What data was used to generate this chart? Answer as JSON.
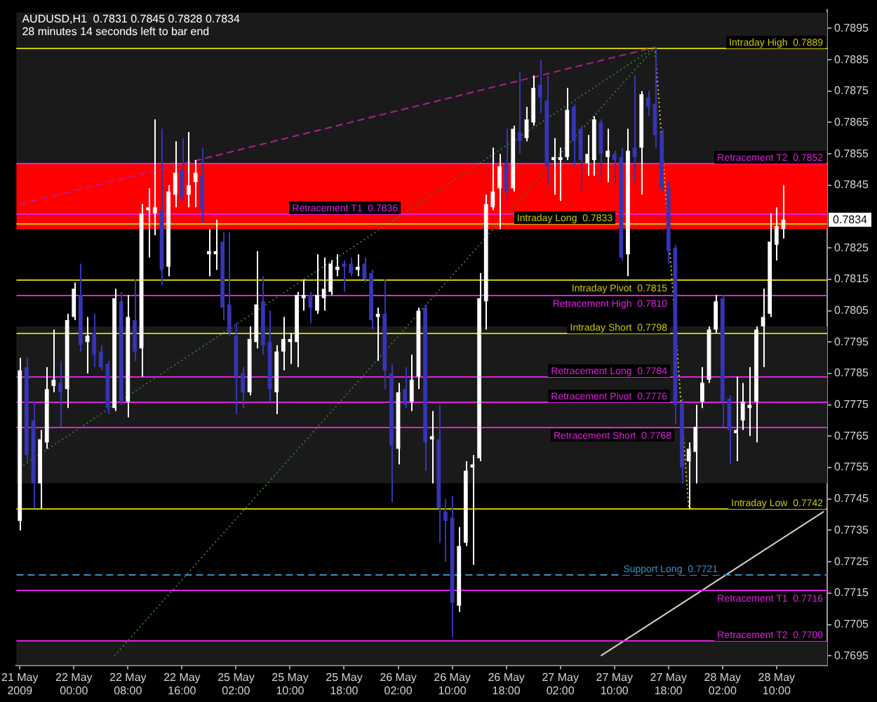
{
  "chart_data": {
    "type": "candlestick",
    "title": "AUDUSD,H1  0.7831 0.7845 0.7828 0.7834",
    "subtitle": "28 minutes 14 seconds left to bar end",
    "categories": [
      "21 May 2009",
      null,
      null,
      null,
      null,
      null,
      null,
      null,
      "22 May 00:00",
      null,
      null,
      null,
      null,
      null,
      null,
      null,
      "22 May 08:00",
      null,
      null,
      null,
      null,
      null,
      null,
      null,
      "22 May 16:00",
      null,
      null,
      null,
      null,
      null,
      null,
      null,
      "25 May 02:00",
      null,
      null,
      null,
      null,
      null,
      null,
      null,
      "25 May 10:00",
      null,
      null,
      null,
      null,
      null,
      null,
      null,
      "25 May 18:00",
      null,
      null,
      null,
      null,
      null,
      null,
      null,
      "26 May 02:00",
      null,
      null,
      null,
      null,
      null,
      null,
      null,
      "26 May 10:00",
      null,
      null,
      null,
      null,
      null,
      null,
      null,
      "26 May 18:00",
      null,
      null,
      null,
      null,
      null,
      null,
      null,
      "27 May 02:00",
      null,
      null,
      null,
      null,
      null,
      null,
      null,
      "27 May 10:00",
      null,
      null,
      null,
      null,
      null,
      null,
      null,
      "27 May 18:00",
      null,
      null,
      null,
      null,
      null,
      null,
      null,
      "28 May 02:00",
      null,
      null,
      null,
      null,
      null,
      null,
      null,
      "28 May 10:00",
      null,
      null,
      null,
      null,
      null,
      null,
      null
    ],
    "ohlc": [
      [
        0.7738,
        0.779,
        0.7735,
        0.7786
      ],
      [
        0.7787,
        0.779,
        0.7757,
        0.7759
      ],
      [
        0.777,
        0.7776,
        0.7742,
        0.775
      ],
      [
        0.775,
        0.7767,
        0.7742,
        0.7764
      ],
      [
        0.7763,
        0.7787,
        0.7761,
        0.778
      ],
      [
        0.7781,
        0.7799,
        0.7779,
        0.7783
      ],
      [
        0.7782,
        0.7789,
        0.7768,
        0.7779
      ],
      [
        0.778,
        0.7804,
        0.7774,
        0.7802
      ],
      [
        0.7803,
        0.7814,
        0.7802,
        0.7812
      ],
      [
        0.781,
        0.782,
        0.7792,
        0.7794
      ],
      [
        0.7795,
        0.7803,
        0.7785,
        0.7797
      ],
      [
        0.7798,
        0.7804,
        0.7787,
        0.7791
      ],
      [
        0.7792,
        0.7794,
        0.7786,
        0.7787
      ],
      [
        0.7788,
        0.7789,
        0.7772,
        0.7774
      ],
      [
        0.7774,
        0.7812,
        0.7773,
        0.7809
      ],
      [
        0.7808,
        0.7811,
        0.7775,
        0.7776
      ],
      [
        0.7776,
        0.781,
        0.7771,
        0.7803
      ],
      [
        0.7802,
        0.7815,
        0.7789,
        0.7792
      ],
      [
        0.7793,
        0.7839,
        0.7784,
        0.7836
      ],
      [
        0.7837,
        0.7844,
        0.7822,
        0.7838
      ],
      [
        0.7836,
        0.7866,
        0.7829,
        0.7838
      ],
      [
        0.7837,
        0.7863,
        0.7813,
        0.7818
      ],
      [
        0.7819,
        0.7845,
        0.7816,
        0.7843
      ],
      [
        0.7842,
        0.7859,
        0.7838,
        0.7849
      ],
      [
        0.785,
        0.786,
        0.784,
        0.7841
      ],
      [
        0.7842,
        0.7862,
        0.7838,
        0.7845
      ],
      [
        0.7846,
        0.7853,
        0.7838,
        0.7849
      ],
      [
        0.7848,
        0.7857,
        0.7833,
        0.7837
      ],
      [
        0.7823,
        0.7831,
        0.7816,
        0.7824
      ],
      [
        0.7823,
        0.7834,
        0.7818,
        0.7824
      ],
      [
        0.7827,
        0.783,
        0.7802,
        0.7806
      ],
      [
        0.7807,
        0.783,
        0.7797,
        0.7798
      ],
      [
        0.7797,
        0.7801,
        0.7772,
        0.7784
      ],
      [
        0.7785,
        0.7787,
        0.7774,
        0.7779
      ],
      [
        0.7779,
        0.78,
        0.7778,
        0.7796
      ],
      [
        0.7795,
        0.7824,
        0.7793,
        0.7807
      ],
      [
        0.7808,
        0.7816,
        0.7791,
        0.7794
      ],
      [
        0.7795,
        0.7805,
        0.7776,
        0.778
      ],
      [
        0.7779,
        0.7794,
        0.7772,
        0.7792
      ],
      [
        0.7792,
        0.7803,
        0.7786,
        0.7796
      ],
      [
        0.7795,
        0.7798,
        0.7788,
        0.7796
      ],
      [
        0.7795,
        0.7811,
        0.7787,
        0.781
      ],
      [
        0.7809,
        0.7815,
        0.7805,
        0.781
      ],
      [
        0.781,
        0.7811,
        0.7801,
        0.7806
      ],
      [
        0.7805,
        0.7823,
        0.7804,
        0.781
      ],
      [
        0.7809,
        0.7822,
        0.7805,
        0.7812
      ],
      [
        0.7811,
        0.7821,
        0.781,
        0.782
      ],
      [
        0.7818,
        0.7823,
        0.7816,
        0.7819
      ],
      [
        0.782,
        0.7821,
        0.7811,
        0.7819
      ],
      [
        0.782,
        0.7822,
        0.7816,
        0.7817
      ],
      [
        0.7818,
        0.7823,
        0.7816,
        0.7819
      ],
      [
        0.782,
        0.7822,
        0.7814,
        0.7815
      ],
      [
        0.7817,
        0.7818,
        0.7799,
        0.7802
      ],
      [
        0.7803,
        0.7806,
        0.7789,
        0.7804
      ],
      [
        0.7804,
        0.7815,
        0.778,
        0.7786
      ],
      [
        0.7785,
        0.7788,
        0.7744,
        0.7762
      ],
      [
        0.7761,
        0.7782,
        0.7756,
        0.7779
      ],
      [
        0.778,
        0.7787,
        0.7774,
        0.7775
      ],
      [
        0.7776,
        0.7791,
        0.7773,
        0.7783
      ],
      [
        0.7784,
        0.7806,
        0.778,
        0.7805
      ],
      [
        0.7806,
        0.7807,
        0.7754,
        0.7763
      ],
      [
        0.7764,
        0.7773,
        0.775,
        0.7765
      ],
      [
        0.7764,
        0.7775,
        0.7731,
        0.7742
      ],
      [
        0.7741,
        0.7745,
        0.7725,
        0.7738
      ],
      [
        0.7739,
        0.7746,
        0.7701,
        0.7712
      ],
      [
        0.7711,
        0.7736,
        0.7709,
        0.773
      ],
      [
        0.7731,
        0.7757,
        0.773,
        0.7754
      ],
      [
        0.7755,
        0.7759,
        0.7724,
        0.7756
      ],
      [
        0.7758,
        0.7817,
        0.7757,
        0.7809
      ],
      [
        0.7808,
        0.7842,
        0.7799,
        0.7839
      ],
      [
        0.7838,
        0.7857,
        0.7837,
        0.7843
      ],
      [
        0.7844,
        0.7855,
        0.7831,
        0.7851
      ],
      [
        0.7852,
        0.7863,
        0.784,
        0.7843
      ],
      [
        0.7844,
        0.7864,
        0.7843,
        0.7863
      ],
      [
        0.7862,
        0.7881,
        0.7855,
        0.7859
      ],
      [
        0.786,
        0.787,
        0.7859,
        0.7866
      ],
      [
        0.7865,
        0.788,
        0.7864,
        0.7876
      ],
      [
        0.7877,
        0.7885,
        0.7868,
        0.7873
      ],
      [
        0.7872,
        0.788,
        0.7845,
        0.7851
      ],
      [
        0.7853,
        0.786,
        0.7842,
        0.7854
      ],
      [
        0.7853,
        0.7857,
        0.784,
        0.7854
      ],
      [
        0.7854,
        0.7876,
        0.7853,
        0.7869
      ],
      [
        0.787,
        0.7871,
        0.7851,
        0.7859
      ],
      [
        0.7863,
        0.7864,
        0.7843,
        0.7853
      ],
      [
        0.7852,
        0.7861,
        0.7848,
        0.7855
      ],
      [
        0.7853,
        0.7867,
        0.7848,
        0.7866
      ],
      [
        0.7865,
        0.7866,
        0.7846,
        0.7855
      ],
      [
        0.7854,
        0.7863,
        0.7846,
        0.7856
      ],
      [
        0.7855,
        0.7856,
        0.7846,
        0.7853
      ],
      [
        0.7854,
        0.7857,
        0.7821,
        0.7822
      ],
      [
        0.7823,
        0.7863,
        0.7816,
        0.7856
      ],
      [
        0.7857,
        0.788,
        0.7846,
        0.7854
      ],
      [
        0.7857,
        0.7875,
        0.7842,
        0.7874
      ],
      [
        0.7873,
        0.7875,
        0.7867,
        0.787
      ],
      [
        0.7871,
        0.7889,
        0.7857,
        0.7861
      ],
      [
        0.7862,
        0.7863,
        0.7843,
        0.7844
      ],
      [
        0.7844,
        0.7846,
        0.782,
        0.7824
      ],
      [
        0.7825,
        0.7826,
        0.7769,
        0.7775
      ],
      [
        0.7775,
        0.7777,
        0.775,
        0.7755
      ],
      [
        0.7757,
        0.7763,
        0.7742,
        0.7761
      ],
      [
        0.776,
        0.7775,
        0.775,
        0.7768
      ],
      [
        0.7776,
        0.7787,
        0.7774,
        0.7782
      ],
      [
        0.7783,
        0.78,
        0.7782,
        0.7799
      ],
      [
        0.7799,
        0.781,
        0.7798,
        0.7808
      ],
      [
        0.7809,
        0.781,
        0.7768,
        0.7776
      ],
      [
        0.7777,
        0.7778,
        0.7756,
        0.7767
      ],
      [
        0.7766,
        0.7784,
        0.7757,
        0.7767
      ],
      [
        0.777,
        0.7782,
        0.7767,
        0.7776
      ],
      [
        0.7774,
        0.7787,
        0.7765,
        0.7775
      ],
      [
        0.7776,
        0.78,
        0.7763,
        0.7799
      ],
      [
        0.78,
        0.7812,
        0.7787,
        0.7803
      ],
      [
        0.7804,
        0.7836,
        0.7803,
        0.7827
      ],
      [
        0.7826,
        0.7838,
        0.7821,
        0.7832
      ],
      [
        0.7831,
        0.7845,
        0.7828,
        0.7834
      ],
      null,
      null,
      null,
      null,
      null,
      null
    ],
    "colors": [
      "#ffffff",
      "#3535b5",
      "#3535b5",
      "#ffffff",
      "#ffffff",
      "#ffffff",
      "#3535b5",
      "#ffffff",
      "#ffffff",
      "#3535b5",
      "#ffffff",
      "#3535b5",
      "#3535b5",
      "#3535b5",
      "#ffffff",
      "#3535b5",
      "#ffffff",
      "#3535b5",
      "#ffffff",
      "#ffffff",
      "#ffffff",
      "#3535b5",
      "#ffffff",
      "#ffffff",
      "#3535b5",
      "#ffffff",
      "#ffffff",
      "#3535b5",
      "#ffffff",
      "#ffffff",
      "#3535b5",
      "#3535b5",
      "#3535b5",
      "#3535b5",
      "#ffffff",
      "#ffffff",
      "#3535b5",
      "#3535b5",
      "#ffffff",
      "#ffffff",
      "#ffffff",
      "#ffffff",
      "#ffffff",
      "#3535b5",
      "#ffffff",
      "#ffffff",
      "#ffffff",
      "#ffffff",
      "#3535b5",
      "#3535b5",
      "#ffffff",
      "#3535b5",
      "#3535b5",
      "#ffffff",
      "#3535b5",
      "#3535b5",
      "#ffffff",
      "#3535b5",
      "#ffffff",
      "#ffffff",
      "#3535b5",
      "#ffffff",
      "#3535b5",
      "#3535b5",
      "#3535b5",
      "#ffffff",
      "#ffffff",
      "#ffffff",
      "#ffffff",
      "#ffffff",
      "#ffffff",
      "#ffffff",
      "#3535b5",
      "#ffffff",
      "#3535b5",
      "#ffffff",
      "#ffffff",
      "#3535b5",
      "#3535b5",
      "#ffffff",
      "#ffffff",
      "#ffffff",
      "#3535b5",
      "#3535b5",
      "#ffffff",
      "#ffffff",
      "#3535b5",
      "#ffffff",
      "#3535b5",
      "#3535b5",
      "#ffffff",
      "#3535b5",
      "#ffffff",
      "#3535b5",
      "#3535b5",
      "#3535b5",
      "#3535b5",
      "#3535b5",
      "#3535b5",
      "#ffffff",
      "#ffffff",
      "#ffffff",
      "#ffffff",
      "#ffffff",
      "#3535b5",
      "#3535b5",
      "#ffffff",
      "#ffffff",
      "#ffffff",
      "#ffffff",
      "#ffffff",
      "#ffffff",
      "#ffffff",
      "#ffffff",
      null,
      null,
      null,
      null,
      null,
      null
    ],
    "series": [
      {
        "type": "line",
        "color": "#b0208a",
        "line_style": "dashed",
        "values": [
          0.7839,
          null,
          null,
          null,
          null,
          null,
          null,
          null,
          null,
          null,
          null,
          null,
          null,
          null,
          null,
          null,
          null,
          null,
          null,
          null,
          null,
          null,
          null,
          null,
          null,
          null,
          null,
          null,
          null,
          null,
          null,
          null,
          null,
          null,
          null,
          null,
          null,
          null,
          null,
          null,
          null,
          null,
          null,
          null,
          null,
          null,
          null,
          null,
          null,
          null,
          null,
          null,
          null,
          null,
          null,
          null,
          null,
          null,
          null,
          null,
          null,
          null,
          null,
          null,
          null,
          null,
          null,
          null,
          null,
          null,
          null,
          null,
          null,
          null,
          null,
          null,
          null,
          null,
          null,
          null,
          null,
          null,
          null,
          null,
          null,
          null,
          null,
          null,
          null,
          null,
          null,
          null,
          null,
          null,
          0.7889,
          null,
          null,
          null,
          null,
          null,
          null,
          null,
          null,
          null,
          null,
          null,
          null,
          null,
          null,
          null,
          null,
          null,
          null,
          null,
          null,
          null,
          null,
          null,
          null,
          null
        ]
      },
      {
        "type": "line",
        "color": "#2f7a2f",
        "line_style": "dotted",
        "values": [
          0.7755,
          null,
          null,
          null,
          null,
          null,
          null,
          null,
          null,
          null,
          null,
          null,
          null,
          null,
          null,
          null,
          null,
          null,
          null,
          null,
          null,
          null,
          null,
          null,
          null,
          null,
          null,
          null,
          null,
          null,
          null,
          null,
          null,
          null,
          null,
          null,
          null,
          null,
          null,
          null,
          null,
          null,
          null,
          null,
          null,
          null,
          null,
          null,
          null,
          null,
          null,
          null,
          null,
          null,
          null,
          null,
          null,
          null,
          null,
          null,
          null,
          null,
          null,
          null,
          null,
          null,
          null,
          null,
          null,
          null,
          null,
          null,
          null,
          null,
          null,
          null,
          null,
          null,
          null,
          null,
          null,
          null,
          null,
          null,
          null,
          null,
          null,
          null,
          null,
          null,
          null,
          null,
          null,
          null,
          0.7889,
          null,
          null,
          null,
          null,
          null,
          null,
          null,
          null,
          null,
          null,
          null,
          null,
          null,
          null,
          null,
          null,
          null,
          null,
          null,
          null,
          null,
          null,
          null,
          null,
          null
        ]
      },
      {
        "type": "line",
        "color": "#2f7a2f",
        "line_style": "dotted",
        "values": [
          null,
          null,
          null,
          null,
          null,
          null,
          null,
          null,
          null,
          null,
          null,
          null,
          null,
          null,
          0.7695,
          null,
          null,
          null,
          null,
          null,
          null,
          null,
          null,
          null,
          null,
          null,
          null,
          null,
          null,
          null,
          null,
          null,
          null,
          null,
          null,
          null,
          null,
          null,
          null,
          null,
          null,
          null,
          null,
          null,
          null,
          null,
          null,
          null,
          null,
          null,
          null,
          null,
          null,
          null,
          null,
          null,
          null,
          null,
          null,
          null,
          null,
          null,
          null,
          null,
          null,
          null,
          null,
          null,
          null,
          null,
          null,
          null,
          null,
          null,
          null,
          null,
          null,
          null,
          null,
          null,
          null,
          null,
          null,
          null,
          null,
          null,
          null,
          null,
          null,
          null,
          null,
          null,
          null,
          null,
          0.7889,
          null,
          null,
          null,
          null,
          null,
          null,
          null,
          null,
          null,
          null,
          null,
          null,
          null,
          null,
          null,
          null,
          null,
          null,
          null,
          null,
          null,
          null,
          null,
          null,
          null
        ]
      },
      {
        "type": "line",
        "color": "#d0d000",
        "line_style": "dotted",
        "values": [
          null,
          null,
          null,
          null,
          null,
          null,
          null,
          null,
          null,
          null,
          null,
          null,
          null,
          null,
          null,
          null,
          null,
          null,
          null,
          null,
          null,
          null,
          null,
          null,
          null,
          null,
          null,
          null,
          null,
          null,
          null,
          null,
          null,
          null,
          null,
          null,
          null,
          null,
          null,
          null,
          null,
          null,
          null,
          null,
          null,
          null,
          null,
          null,
          null,
          null,
          null,
          null,
          null,
          null,
          null,
          null,
          null,
          null,
          null,
          null,
          null,
          null,
          null,
          null,
          null,
          null,
          null,
          null,
          null,
          null,
          null,
          null,
          null,
          null,
          null,
          null,
          null,
          null,
          null,
          null,
          null,
          null,
          null,
          null,
          null,
          null,
          null,
          null,
          null,
          null,
          null,
          null,
          null,
          null,
          0.7889,
          null,
          null,
          null,
          null,
          0.7742,
          null,
          null,
          null,
          null,
          null,
          null,
          null,
          null,
          null,
          null,
          null,
          null,
          null,
          null,
          null,
          null,
          null,
          null,
          null,
          null
        ]
      },
      {
        "type": "line",
        "color": "#d8d0b8",
        "line_style": "solid",
        "values": [
          null,
          null,
          null,
          null,
          null,
          null,
          null,
          null,
          null,
          null,
          null,
          null,
          null,
          null,
          null,
          null,
          null,
          null,
          null,
          null,
          null,
          null,
          null,
          null,
          null,
          null,
          null,
          null,
          null,
          null,
          null,
          null,
          null,
          null,
          null,
          null,
          null,
          null,
          null,
          null,
          null,
          null,
          null,
          null,
          null,
          null,
          null,
          null,
          null,
          null,
          null,
          null,
          null,
          null,
          null,
          null,
          null,
          null,
          null,
          null,
          null,
          null,
          null,
          null,
          null,
          null,
          null,
          null,
          null,
          null,
          null,
          null,
          null,
          null,
          null,
          null,
          null,
          null,
          null,
          null,
          null,
          null,
          null,
          null,
          null,
          null,
          0.7695,
          null,
          null,
          null,
          null,
          null,
          null,
          null,
          null,
          null,
          null,
          null,
          null,
          null,
          null,
          null,
          null,
          null,
          null,
          null,
          null,
          null,
          null,
          null,
          null,
          null,
          null,
          null,
          null,
          null,
          null,
          null,
          null,
          0.7741
        ]
      }
    ],
    "ylim": [
      0.7692,
      0.7901
    ],
    "yticks": [
      0.7695,
      0.7705,
      0.7715,
      0.7725,
      0.7735,
      0.7745,
      0.7755,
      0.7765,
      0.7775,
      0.7785,
      0.7795,
      0.7805,
      0.7815,
      0.7825,
      0.7845,
      0.7855,
      0.7865,
      0.7875,
      0.7885,
      0.7895
    ],
    "bands": [
      {
        "axis": "y",
        "from": 0.785,
        "to": 0.79,
        "color": "#1a1a1a"
      },
      {
        "axis": "y",
        "from": 0.775,
        "to": 0.78,
        "color": "#1a1a1a"
      },
      {
        "axis": "y",
        "from": 0.7692,
        "to": 0.77,
        "color": "#1a1a1a"
      },
      {
        "axis": "y",
        "from": 0.7831,
        "to": 0.7852,
        "color": "#ff0000"
      }
    ],
    "ref_lines": [
      {
        "axis": "y",
        "value": 0.7889,
        "color": "#9a60d8"
      },
      {
        "axis": "y",
        "value": 0.7889,
        "label": "Intraday High  0.7889",
        "color": "#c8c800"
      },
      {
        "axis": "y",
        "value": 0.7852,
        "label": "Retracement T2  0.7852",
        "color": "#e020e0"
      },
      {
        "axis": "y",
        "value": 0.7836,
        "label": "Retracement T1  0.7836",
        "color": "#e020e0"
      },
      {
        "axis": "y",
        "value": 0.7833,
        "label": "Intraday Long  0.7833",
        "color": "#c8c800"
      },
      {
        "axis": "y",
        "value": 0.7815,
        "label": "Intraday Pivot  0.7815",
        "color": "#c8c800"
      },
      {
        "axis": "y",
        "value": 0.781,
        "label": "Retracement High  0.7810",
        "color": "#e020e0"
      },
      {
        "axis": "y",
        "value": 0.7798,
        "label": "Intraday Short  0.7798",
        "color": "#c8c800"
      },
      {
        "axis": "y",
        "value": 0.7784,
        "label": "Retracement Long  0.7784",
        "color": "#e020e0"
      },
      {
        "axis": "y",
        "value": 0.7776,
        "label": "Retracement Pivot  0.7776",
        "color": "#e020e0"
      },
      {
        "axis": "y",
        "value": 0.7768,
        "label": "Retracement Short  0.7768",
        "color": "#e020e0"
      },
      {
        "axis": "y",
        "value": 0.7742,
        "label": "Intraday Low  0.7742",
        "color": "#c8c800"
      },
      {
        "axis": "y",
        "value": 0.7721,
        "label": "Support Long  0.7721",
        "color": "#3a8fc0",
        "line_style": "dashed"
      },
      {
        "axis": "y",
        "value": 0.7716,
        "label": "Retracement T1  0.7716",
        "color": "#e020e0"
      },
      {
        "axis": "y",
        "value": 0.77,
        "label": "Retracement T2  0.7700",
        "color": "#e020e0"
      }
    ],
    "annotations": [
      {
        "text": "0.7834",
        "y": 0.7834
      }
    ]
  }
}
